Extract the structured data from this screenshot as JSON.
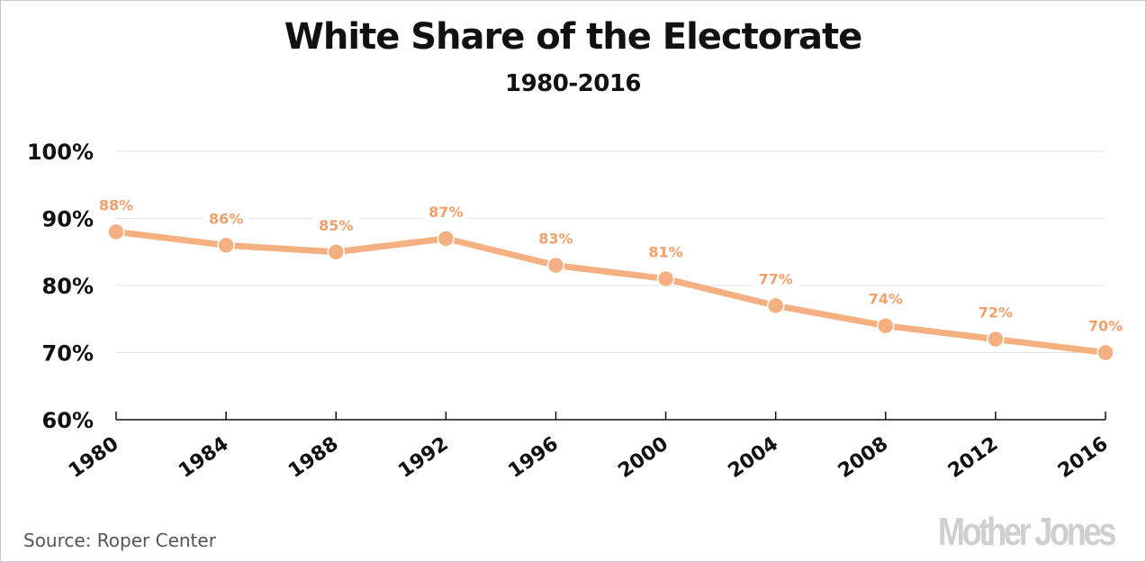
{
  "chart_data": {
    "type": "line",
    "title": "White Share of the Electorate",
    "subtitle": "1980-2016",
    "xlabel": "",
    "ylabel": "",
    "x": [
      "1980",
      "1984",
      "1988",
      "1992",
      "1996",
      "2000",
      "2004",
      "2008",
      "2012",
      "2016"
    ],
    "series": [
      {
        "name": "White share of electorate",
        "color": "#f4b080",
        "values": [
          88,
          86,
          85,
          87,
          83,
          81,
          77,
          74,
          72,
          70
        ],
        "labels": [
          "88%",
          "86%",
          "85%",
          "87%",
          "83%",
          "81%",
          "77%",
          "74%",
          "72%",
          "70%"
        ]
      }
    ],
    "ylim": [
      60,
      100
    ],
    "yticks": [
      100,
      90,
      80,
      70,
      60
    ],
    "ytick_labels": [
      "100%",
      "90%",
      "80%",
      "70%",
      "60%"
    ],
    "grid": true,
    "legend": "none",
    "label_color": "#f0a06a"
  },
  "footer": {
    "source": "Source: Roper Center",
    "brand": "Mother Jones"
  }
}
